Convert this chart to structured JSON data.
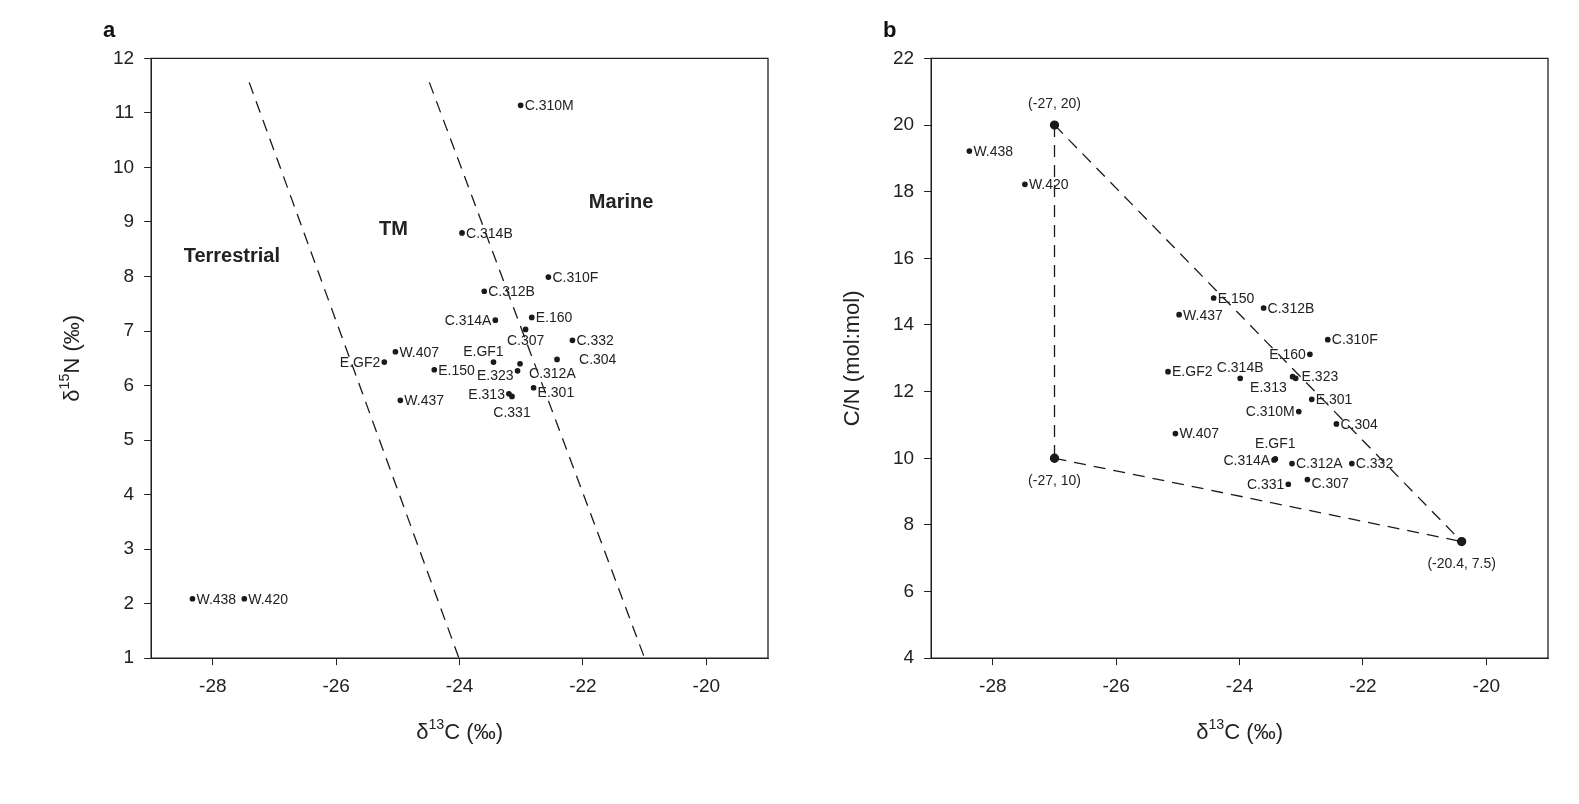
{
  "chart_data": [
    {
      "type": "scatter",
      "title": "a",
      "xlabel": "δ$^{13}$C (‰)",
      "ylabel": "δ$^{15}$N (‰)",
      "xlim": [
        -29,
        -19
      ],
      "xticks": [
        -28,
        -26,
        -24,
        -22,
        -20
      ],
      "ylim": [
        1,
        12
      ],
      "yticks": [
        1,
        2,
        3,
        4,
        5,
        6,
        7,
        8,
        9,
        10,
        11,
        12
      ],
      "grid": false,
      "legend": false,
      "marker": "circle",
      "series": [
        {
          "color": "#1a1a1a",
          "x": [
            -23.01,
            -23.96,
            -22.56,
            -23.6,
            -23.42,
            -22.83,
            -22.93,
            -22.17,
            -25.04,
            -25.22,
            -24.41,
            -23.45,
            -23.02,
            -22.42,
            -23.06,
            -22.8,
            -23.2,
            -23.15,
            -24.96,
            -28.33,
            -27.49
          ],
          "values": [
            11.14,
            8.8,
            7.99,
            7.73,
            7.2,
            7.25,
            7.03,
            6.83,
            6.62,
            6.43,
            6.29,
            6.43,
            6.4,
            6.48,
            6.27,
            5.96,
            5.85,
            5.8,
            5.73,
            2.09,
            2.09
          ],
          "value_labels": [
            "C.310M",
            "C.314B",
            "C.310F",
            "C.312B",
            "C.314A",
            "E.160",
            "C.307",
            "C.332",
            "W.407",
            "E.GF2",
            "E.150",
            "E.GF1",
            "C.312A",
            "C.304",
            "E.323",
            "E.301",
            "E.313",
            "C.331",
            "W.437",
            "W.438",
            "W.420"
          ]
        },
        {
          "type": "line",
          "line_style": "dashed",
          "marker": "none",
          "color": "#1a1a1a",
          "x": [
            -27.41,
            -24.01
          ],
          "values": [
            11.56,
            1
          ]
        },
        {
          "type": "line",
          "line_style": "dashed",
          "marker": "none",
          "color": "#1a1a1a",
          "x": [
            -24.49,
            -21.0
          ],
          "values": [
            11.56,
            1
          ]
        }
      ],
      "annotations": [
        "Terrestrial",
        "TM",
        "Marine"
      ]
    },
    {
      "type": "scatter",
      "title": "b",
      "xlabel": "δ$^{13}$C (‰)",
      "ylabel": "C/N (mol:mol)",
      "xlim": [
        -29,
        -19
      ],
      "xticks": [
        -28,
        -26,
        -24,
        -22,
        -20
      ],
      "ylim": [
        4,
        22
      ],
      "yticks": [
        4,
        6,
        8,
        10,
        12,
        14,
        16,
        18,
        20,
        22
      ],
      "grid": false,
      "legend": false,
      "marker": "circle",
      "series": [
        {
          "color": "#1a1a1a",
          "x": [
            -28.38,
            -27.48,
            -24.42,
            -24.98,
            -23.61,
            -22.57,
            -22.86,
            -25.16,
            -23.99,
            -23.14,
            -23.09,
            -22.83,
            -23.04,
            -22.43,
            -25.04,
            -23.44,
            -23.42,
            -23.15,
            -22.18,
            -22.9,
            -23.21
          ],
          "values": [
            19.22,
            18.22,
            14.81,
            14.31,
            14.51,
            13.56,
            13.12,
            12.6,
            12.4,
            12.45,
            12.4,
            11.77,
            11.4,
            11.03,
            10.74,
            9.95,
            9.98,
            9.84,
            9.84,
            9.36,
            9.22
          ],
          "value_labels": [
            "W.438",
            "W.420",
            "E.150",
            "W.437",
            "C.312B",
            "C.310F",
            "E.160",
            "E.GF2",
            "C.314B",
            "E.323",
            "E.313",
            "E.301",
            "C.310M",
            "C.304",
            "W.407",
            "C.314A",
            "E.GF1",
            "C.312A",
            "C.332",
            "C.307",
            "C.331"
          ]
        },
        {
          "type": "line",
          "line_style": "dashed",
          "marker": "none",
          "color": "#1a1a1a",
          "x": [
            -27,
            -27
          ],
          "values": [
            20,
            10
          ]
        },
        {
          "type": "line",
          "line_style": "dashed",
          "marker": "none",
          "color": "#1a1a1a",
          "x": [
            -27,
            -20.4
          ],
          "values": [
            10,
            7.5
          ]
        },
        {
          "type": "line",
          "line_style": "dashed",
          "marker": "none",
          "color": "#1a1a1a",
          "x": [
            -27,
            -20.4
          ],
          "values": [
            20,
            7.5
          ]
        },
        {
          "type": "scatter",
          "marker": "circle",
          "color": "#1a1a1a",
          "x": [
            -27,
            -27,
            -20.4
          ],
          "values": [
            20,
            10,
            7.5
          ],
          "value_labels": [
            "(-27, 20)",
            "(-27, 10)",
            "(-20.4, 7.5)"
          ]
        }
      ]
    }
  ]
}
